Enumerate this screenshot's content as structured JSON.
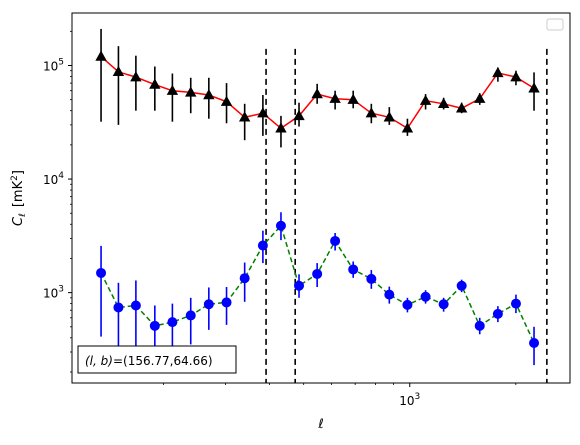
{
  "chart_data": {
    "type": "scatter",
    "xscale": "log",
    "yscale": "log",
    "xlim": [
      110,
      2850
    ],
    "ylim": [
      160,
      290000
    ],
    "xlabel": "ℓ",
    "ylabel_main": "C",
    "ylabel_sub": "ℓ",
    "ylabel_unit": "[mK",
    "ylabel_unit_sup": "2",
    "ylabel_unit_close": "]",
    "x_ticks": [
      {
        "value": 1000,
        "base": "10",
        "exp": "3"
      }
    ],
    "y_ticks": [
      {
        "value": 1000,
        "base": "10",
        "exp": "3"
      },
      {
        "value": 10000,
        "base": "10",
        "exp": "4"
      },
      {
        "value": 100000,
        "base": "10",
        "exp": "5"
      }
    ],
    "vlines": [
      391,
      473,
      2450
    ],
    "annotation": "(l, b)=(156.77,64.66)",
    "annotation_parts": {
      "lhs": "(l, b)",
      "rhs": "=(156.77,64.66)"
    },
    "legend": {
      "placement": "top-right",
      "entries": []
    },
    "series": [
      {
        "marker": "triangle",
        "color": "#000000",
        "line_color": "#ff0000",
        "line_style": "solid",
        "points": [
          {
            "x": 133,
            "y": 120000,
            "lo": 32000,
            "hi": 210000
          },
          {
            "x": 149,
            "y": 88000,
            "lo": 30000,
            "hi": 148000
          },
          {
            "x": 167,
            "y": 79000,
            "lo": 40000,
            "hi": 122000
          },
          {
            "x": 189,
            "y": 68000,
            "lo": 40000,
            "hi": 98000
          },
          {
            "x": 212,
            "y": 60000,
            "lo": 32000,
            "hi": 85000
          },
          {
            "x": 239,
            "y": 58000,
            "lo": 38000,
            "hi": 78000
          },
          {
            "x": 269,
            "y": 55000,
            "lo": 34000,
            "hi": 78000
          },
          {
            "x": 302,
            "y": 48000,
            "lo": 31000,
            "hi": 70000
          },
          {
            "x": 340,
            "y": 35000,
            "lo": 22000,
            "hi": 46000
          },
          {
            "x": 383,
            "y": 38000,
            "lo": 24000,
            "hi": 55000
          },
          {
            "x": 431,
            "y": 28000,
            "lo": 19000,
            "hi": 36000
          },
          {
            "x": 485,
            "y": 36000,
            "lo": 29000,
            "hi": 47000
          },
          {
            "x": 546,
            "y": 56000,
            "lo": 46000,
            "hi": 69000
          },
          {
            "x": 614,
            "y": 51000,
            "lo": 41000,
            "hi": 60000
          },
          {
            "x": 691,
            "y": 50000,
            "lo": 42000,
            "hi": 60000
          },
          {
            "x": 778,
            "y": 38000,
            "lo": 31000,
            "hi": 46000
          },
          {
            "x": 875,
            "y": 35000,
            "lo": 30000,
            "hi": 43000
          },
          {
            "x": 985,
            "y": 28000,
            "lo": 24000,
            "hi": 34000
          },
          {
            "x": 1109,
            "y": 49000,
            "lo": 41000,
            "hi": 56000
          },
          {
            "x": 1248,
            "y": 46000,
            "lo": 41000,
            "hi": 52000
          },
          {
            "x": 1404,
            "y": 42000,
            "lo": 38000,
            "hi": 47000
          },
          {
            "x": 1580,
            "y": 51000,
            "lo": 45000,
            "hi": 57000
          },
          {
            "x": 1779,
            "y": 86000,
            "lo": 72000,
            "hi": 96000
          },
          {
            "x": 2002,
            "y": 79000,
            "lo": 67000,
            "hi": 90000
          },
          {
            "x": 2253,
            "y": 63000,
            "lo": 40000,
            "hi": 87000
          }
        ]
      },
      {
        "marker": "circle",
        "color": "#0000ff",
        "line_color": "#008000",
        "line_style": "dashed",
        "points": [
          {
            "x": 133,
            "y": 1490,
            "lo": 410,
            "hi": 2580
          },
          {
            "x": 149,
            "y": 740,
            "lo": 250,
            "hi": 1220
          },
          {
            "x": 167,
            "y": 770,
            "lo": 280,
            "hi": 1280
          },
          {
            "x": 189,
            "y": 510,
            "lo": 250,
            "hi": 770
          },
          {
            "x": 212,
            "y": 550,
            "lo": 290,
            "hi": 800
          },
          {
            "x": 239,
            "y": 630,
            "lo": 350,
            "hi": 900
          },
          {
            "x": 269,
            "y": 790,
            "lo": 470,
            "hi": 1110
          },
          {
            "x": 302,
            "y": 820,
            "lo": 520,
            "hi": 1120
          },
          {
            "x": 340,
            "y": 1340,
            "lo": 830,
            "hi": 1840
          },
          {
            "x": 383,
            "y": 2600,
            "lo": 1820,
            "hi": 3510
          },
          {
            "x": 431,
            "y": 3880,
            "lo": 2900,
            "hi": 5100
          },
          {
            "x": 485,
            "y": 1150,
            "lo": 900,
            "hi": 1450
          },
          {
            "x": 546,
            "y": 1460,
            "lo": 1120,
            "hi": 1820
          },
          {
            "x": 614,
            "y": 2850,
            "lo": 2350,
            "hi": 3350
          },
          {
            "x": 691,
            "y": 1600,
            "lo": 1350,
            "hi": 1880
          },
          {
            "x": 778,
            "y": 1320,
            "lo": 1080,
            "hi": 1580
          },
          {
            "x": 875,
            "y": 960,
            "lo": 800,
            "hi": 1130
          },
          {
            "x": 985,
            "y": 780,
            "lo": 670,
            "hi": 900
          },
          {
            "x": 1109,
            "y": 920,
            "lo": 800,
            "hi": 1050
          },
          {
            "x": 1248,
            "y": 790,
            "lo": 680,
            "hi": 900
          },
          {
            "x": 1404,
            "y": 1150,
            "lo": 1010,
            "hi": 1300
          },
          {
            "x": 1580,
            "y": 510,
            "lo": 430,
            "hi": 600
          },
          {
            "x": 1779,
            "y": 650,
            "lo": 550,
            "hi": 760
          },
          {
            "x": 2002,
            "y": 800,
            "lo": 660,
            "hi": 960
          },
          {
            "x": 2253,
            "y": 360,
            "lo": 230,
            "hi": 500
          }
        ]
      }
    ]
  }
}
